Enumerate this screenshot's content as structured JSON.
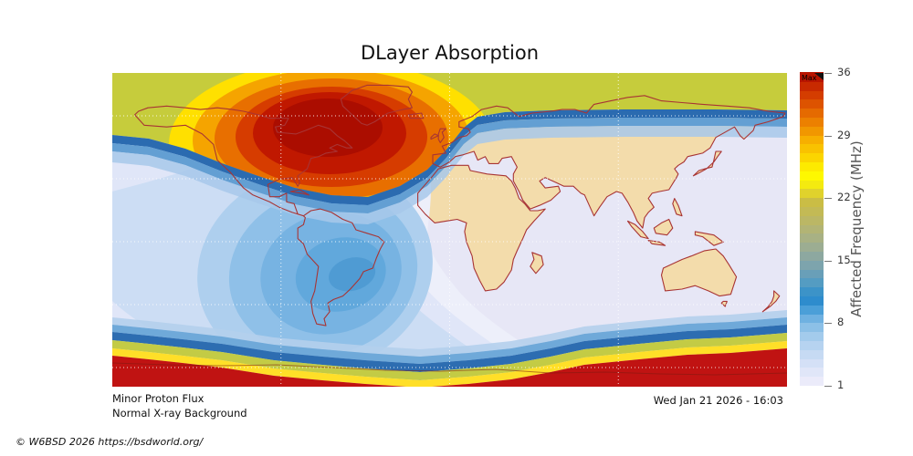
{
  "title": "DLayer Absorption",
  "status": {
    "proton": "Minor Proton Flux",
    "xray": "Normal X-ray Background"
  },
  "timestamp": "Wed Jan 21 2026 - 16:03",
  "copyright": "© W6BSD 2026 https://bsdworld.org/",
  "colorbar": {
    "label": "Affected Frequency (MHz)",
    "max_label": "Max",
    "min": 1,
    "max": 36,
    "ticks": [
      36,
      29,
      22,
      15,
      8,
      1
    ],
    "segment_colors": [
      "#ebebfa",
      "#e0e6f8",
      "#d4e0f6",
      "#c6daf3",
      "#b6d3f0",
      "#a3cbec",
      "#8cc0e7",
      "#6fb1e1",
      "#4b9fd8",
      "#2e8ccd",
      "#3c93c8",
      "#549cc2",
      "#699fb8",
      "#7da4ad",
      "#8da8a0",
      "#9cad92",
      "#a8b184",
      "#b2b475",
      "#bbb765",
      "#c3ba55",
      "#cabd45",
      "#e0d22c",
      "#f4ea10",
      "#fef800",
      "#fdea00",
      "#fbd500",
      "#f9c200",
      "#f7af00",
      "#f19700",
      "#ec8000",
      "#e56a00",
      "#dd5300",
      "#d43d00",
      "#c82a00",
      "#b81500"
    ]
  },
  "map": {
    "ocean_night": "#e7e7f6",
    "land": "#f3dcab",
    "coastline": "#a83434",
    "gridline": "#ffffff",
    "day_rings": [
      "#edeffa",
      "#e0e6f8",
      "#ccddf4",
      "#aecfee",
      "#8fc0e8",
      "#77b3e2",
      "#61a8dc",
      "#4f9bd3"
    ],
    "polar_cap_band": "#c6cc3c",
    "polar_cap_levels": [
      "#ffe000",
      "#f5a400",
      "#e86f00",
      "#d63c00",
      "#c01800",
      "#ab0d00"
    ],
    "auroral_edge_blues": [
      "#2b6bb0",
      "#639fd3",
      "#a7c8ea"
    ],
    "south_red": "#c01312",
    "south_yellow": "#ffdf28",
    "south_olive": "#c3cb45",
    "south_blues": [
      "#2d6db1",
      "#6fa9d9",
      "#b4cfec"
    ],
    "antarctica_line": "#7d1a10"
  },
  "chart_data": {
    "type": "heatmap",
    "title": "DLayer Absorption",
    "colorbar_label": "Affected Frequency (MHz)",
    "colorbar_ticks": [
      1,
      8,
      15,
      22,
      29,
      36
    ],
    "colorbar_range": [
      1,
      36
    ],
    "colorbar_top_label": "Max",
    "legend_position": "right",
    "grid": "dotted white, lon lines at -90/0/+90, 5 latitude lines",
    "regions": [
      {
        "name": "north polar cap absorption blob",
        "location": "northern Canada / Greenland / Arctic",
        "value_mhz": "22-36 (Max)"
      },
      {
        "name": "north high-latitude band",
        "location": "full width along top edge",
        "value_mhz": "20-21 (olive-green)"
      },
      {
        "name": "auroral boundary line",
        "location": "across map ~60N dipping under polar blob",
        "value_mhz": "8-10 (blue)"
      },
      {
        "name": "dayside absorption blob",
        "location": "centered over South America (~60W, 25S)",
        "value_mhz": "8-9 at core, stepped rings 2-8"
      },
      {
        "name": "night side",
        "location": "Africa / Asia / Australia",
        "value_mhz": "1-2 (lavender)"
      },
      {
        "name": "south polar cap band",
        "location": "full width along bottom edge",
        "value_mhz": "22-36, olive bulge below Australia"
      }
    ],
    "annotations": [
      "Minor Proton Flux",
      "Normal X-ray Background",
      "Wed Jan 21 2026 - 16:03",
      "© W6BSD 2026 https://bsdworld.org/"
    ]
  }
}
